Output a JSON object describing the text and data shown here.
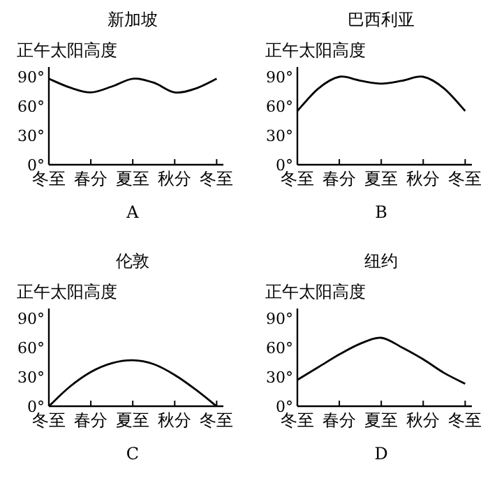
{
  "chart_data": [
    {
      "type": "line",
      "title": "新加坡",
      "ylabel": "正午太阳高度",
      "annotations": [
        "A"
      ],
      "grid": false,
      "marker": "none",
      "line_style": "solid",
      "categories": [
        "冬至",
        null,
        "春分",
        null,
        "夏至",
        null,
        "秋分",
        null,
        "冬至"
      ],
      "ylim": [
        0,
        100
      ],
      "yticks": [
        {
          "value": 0,
          "label": "0°"
        },
        {
          "value": 30,
          "label": "30°"
        },
        {
          "value": 60,
          "label": "60°"
        },
        {
          "value": 90,
          "label": "90°"
        }
      ],
      "series": [
        {
          "color": "#000000",
          "values": [
            88,
            79,
            74,
            80,
            88,
            84,
            74,
            78,
            88
          ]
        }
      ]
    },
    {
      "type": "line",
      "title": "巴西利亚",
      "ylabel": "正午太阳高度",
      "annotations": [
        "B"
      ],
      "grid": false,
      "marker": "none",
      "line_style": "solid",
      "categories": [
        "冬至",
        null,
        "春分",
        null,
        "夏至",
        null,
        "秋分",
        null,
        "冬至"
      ],
      "ylim": [
        0,
        100
      ],
      "yticks": [
        {
          "value": 0,
          "label": "0°"
        },
        {
          "value": 30,
          "label": "30°"
        },
        {
          "value": 60,
          "label": "60°"
        },
        {
          "value": 90,
          "label": "90°"
        }
      ],
      "series": [
        {
          "color": "#000000",
          "values": [
            55,
            78,
            90,
            86,
            83,
            86,
            90,
            78,
            55
          ]
        }
      ]
    },
    {
      "type": "line",
      "title": "伦敦",
      "ylabel": "正午太阳高度",
      "annotations": [
        "C"
      ],
      "grid": false,
      "marker": "none",
      "line_style": "solid",
      "categories": [
        "冬至",
        null,
        "春分",
        null,
        "夏至",
        null,
        "秋分",
        null,
        "冬至"
      ],
      "ylim": [
        0,
        100
      ],
      "yticks": [
        {
          "value": 0,
          "label": "0°"
        },
        {
          "value": 30,
          "label": "30°"
        },
        {
          "value": 60,
          "label": "60°"
        },
        {
          "value": 90,
          "label": "90°"
        }
      ],
      "series": [
        {
          "color": "#000000",
          "values": [
            0,
            20,
            35,
            44,
            47,
            43,
            32,
            17,
            0
          ]
        }
      ]
    },
    {
      "type": "line",
      "title": "纽约",
      "ylabel": "正午太阳高度",
      "annotations": [
        "D"
      ],
      "grid": false,
      "marker": "none",
      "line_style": "solid",
      "categories": [
        "冬至",
        null,
        "春分",
        null,
        "夏至",
        null,
        "秋分",
        null,
        "冬至"
      ],
      "ylim": [
        0,
        100
      ],
      "yticks": [
        {
          "value": 0,
          "label": "0°"
        },
        {
          "value": 30,
          "label": "30°"
        },
        {
          "value": 60,
          "label": "60°"
        },
        {
          "value": 90,
          "label": "90°"
        }
      ],
      "series": [
        {
          "color": "#000000",
          "values": [
            27,
            40,
            53,
            64,
            70,
            60,
            48,
            34,
            23
          ]
        }
      ]
    }
  ]
}
